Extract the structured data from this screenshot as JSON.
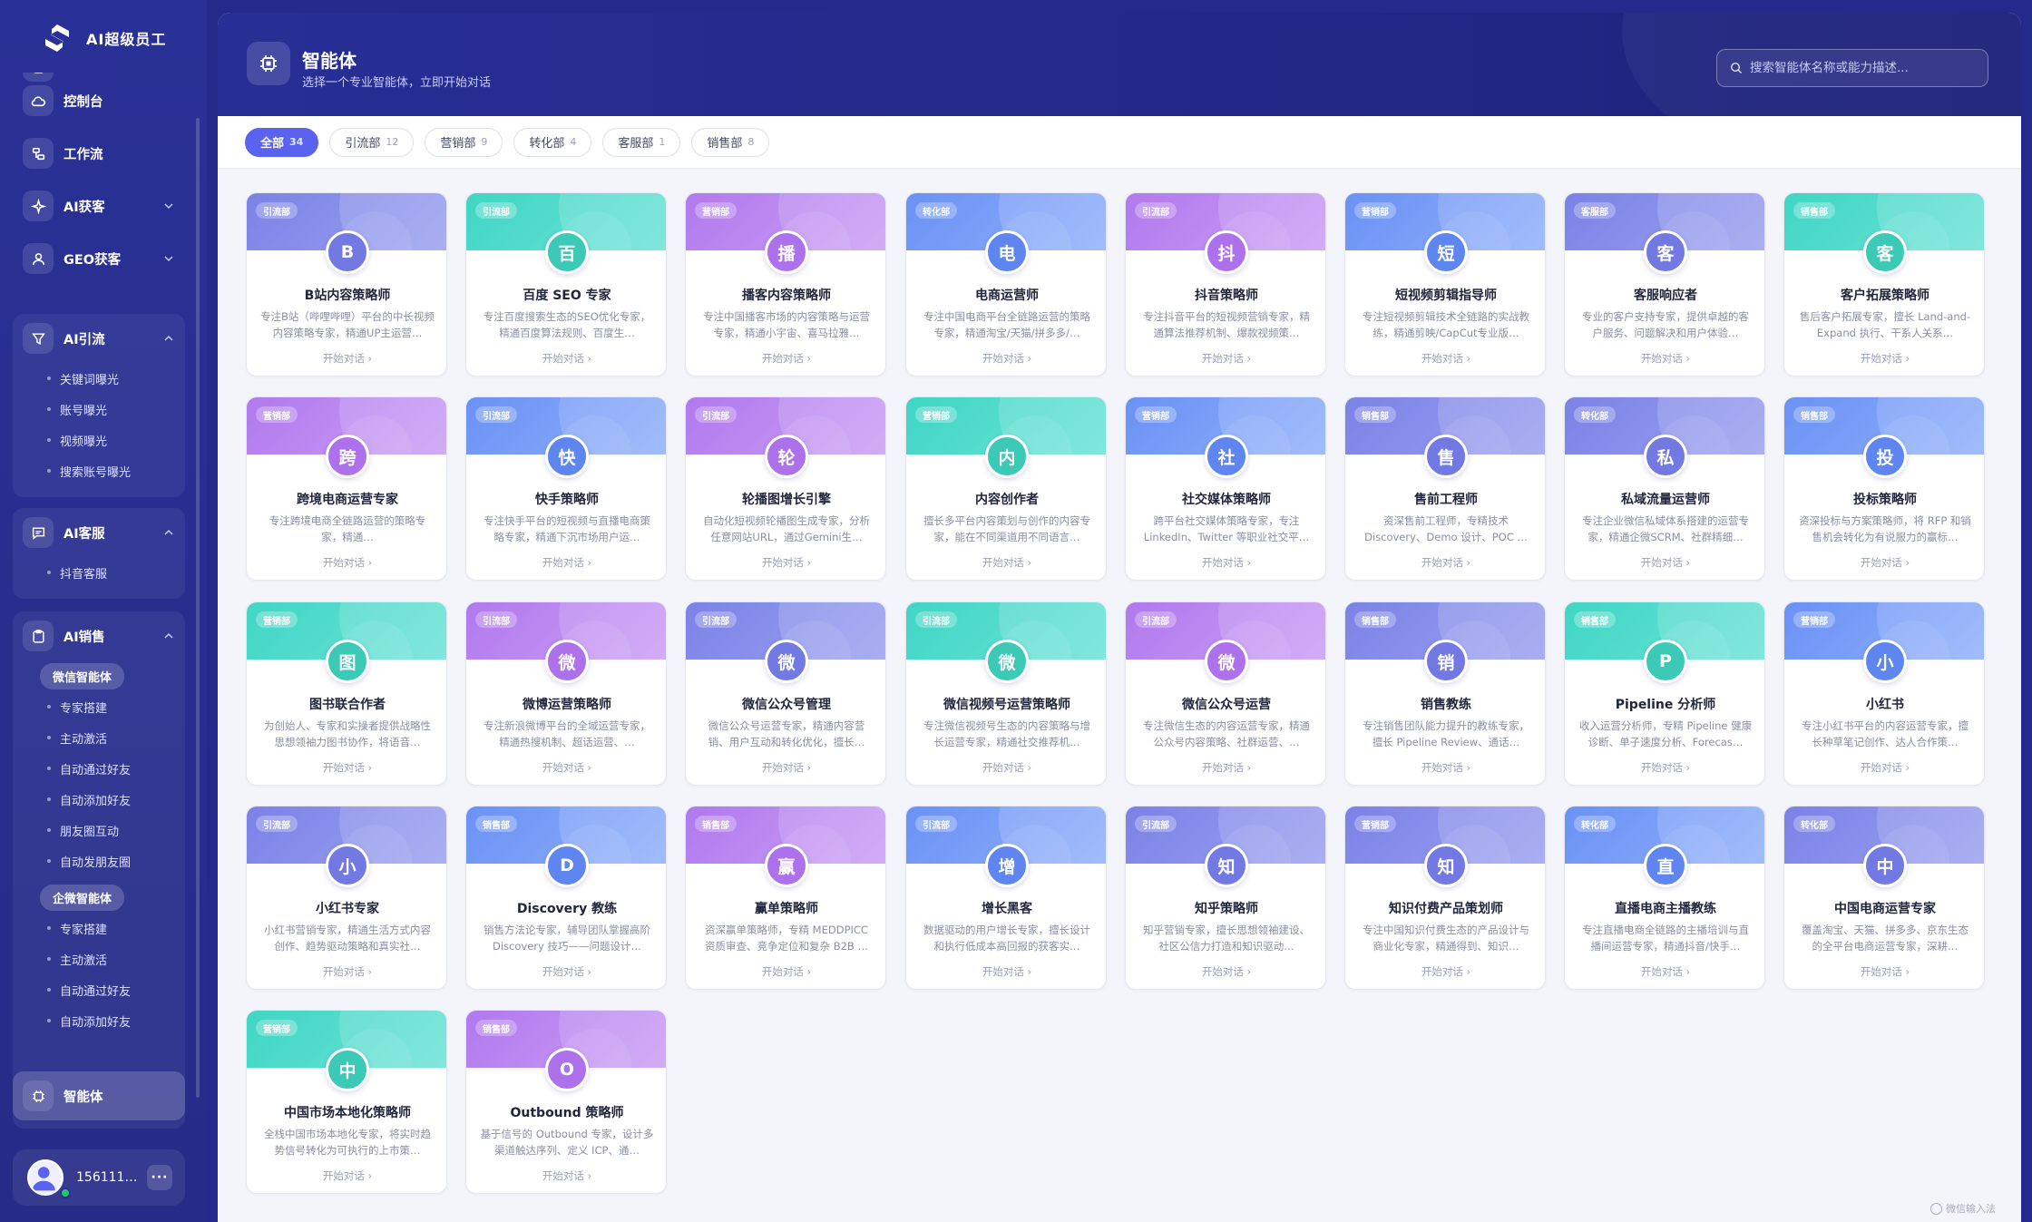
{
  "app": {
    "title": "AI超级员工"
  },
  "sidebar": {
    "nav": [
      {
        "label": "控制台",
        "icon": "cloud-icon"
      },
      {
        "label": "工作流",
        "icon": "workflow-icon"
      },
      {
        "label": "AI获客",
        "icon": "sparkle-icon"
      },
      {
        "label": "GEO获客",
        "icon": "user-search-icon"
      }
    ],
    "groups": {
      "traffic": {
        "label": "AI引流",
        "items": [
          "关键词曝光",
          "账号曝光",
          "视频曝光",
          "搜索账号曝光"
        ]
      },
      "service": {
        "label": "AI客服",
        "items": [
          "抖音客服"
        ]
      },
      "sales": {
        "label": "AI销售",
        "wechat_label": "微信智能体",
        "wechat_items": [
          "专家搭建",
          "主动激活",
          "自动通过好友",
          "自动添加好友",
          "朋友圈互动",
          "自动发朋友圈"
        ],
        "wecom_label": "企微智能体",
        "wecom_items": [
          "专家搭建",
          "主动激活",
          "自动通过好友",
          "自动添加好友"
        ]
      }
    },
    "active": {
      "label": "智能体"
    },
    "user": {
      "name": "1561112…",
      "more": "···"
    }
  },
  "header": {
    "title": "智能体",
    "subtitle": "选择一个专业智能体，立即开始对话",
    "search_placeholder": "搜索智能体名称或能力描述..."
  },
  "tabs": [
    {
      "label": "全部",
      "count": "34"
    },
    {
      "label": "引流部",
      "count": "12"
    },
    {
      "label": "营销部",
      "count": "9"
    },
    {
      "label": "转化部",
      "count": "4"
    },
    {
      "label": "客服部",
      "count": "1"
    },
    {
      "label": "销售部",
      "count": "8"
    }
  ],
  "cta_label": "开始对话 ›",
  "colors": {
    "accent": "#5a63f0",
    "sidebar": "#2a3196",
    "purple": "#7b82e6",
    "teal": "#40d6c4",
    "violet": "#b179ee",
    "blue": "#6a91f5"
  },
  "agents": [
    {
      "badge": "引流部",
      "avatar": "B",
      "color": "purple",
      "name": "B站内容策略师",
      "desc": "专注B站（哔哩哔哩）平台的中长视频内容策略专家，精通UP主运营…"
    },
    {
      "badge": "引流部",
      "avatar": "百",
      "color": "teal",
      "name": "百度 SEO 专家",
      "desc": "专注百度搜索生态的SEO优化专家，精通百度算法规则、百度生…"
    },
    {
      "badge": "营销部",
      "avatar": "播",
      "color": "violet",
      "name": "播客内容策略师",
      "desc": "专注中国播客市场的内容策略与运营专家，精通小宇宙、喜马拉雅…"
    },
    {
      "badge": "转化部",
      "avatar": "电",
      "color": "blue",
      "name": "电商运营师",
      "desc": "专注中国电商平台全链路运营的策略专家，精通淘宝/天猫/拼多多/…"
    },
    {
      "badge": "引流部",
      "avatar": "抖",
      "color": "violet",
      "name": "抖音策略师",
      "desc": "专注抖音平台的短视频营销专家，精通算法推荐机制、爆款视频策…"
    },
    {
      "badge": "营销部",
      "avatar": "短",
      "color": "blue",
      "name": "短视频剪辑指导师",
      "desc": "专注短视频剪辑技术全链路的实战教练，精通剪映/CapCut专业版…"
    },
    {
      "badge": "客服部",
      "avatar": "客",
      "color": "purple",
      "name": "客服响应者",
      "desc": "专业的客户支持专家，提供卓越的客户服务、问题解决和用户体验…"
    },
    {
      "badge": "销售部",
      "avatar": "客",
      "color": "teal",
      "name": "客户拓展策略师",
      "desc": "售后客户拓展专家，擅长 Land-and-Expand 执行、干系人关系…"
    },
    {
      "badge": "营销部",
      "avatar": "跨",
      "color": "violet",
      "name": "跨境电商运营专家",
      "desc": "专注跨境电商全链路运营的策略专家，精通…"
    },
    {
      "badge": "引流部",
      "avatar": "快",
      "color": "blue",
      "name": "快手策略师",
      "desc": "专注快手平台的短视频与直播电商策略专家，精通下沉市场用户运…"
    },
    {
      "badge": "引流部",
      "avatar": "轮",
      "color": "violet",
      "name": "轮播图增长引擎",
      "desc": "自动化短视频轮播图生成专家，分析任意网站URL，通过Gemini生…"
    },
    {
      "badge": "营销部",
      "avatar": "内",
      "color": "teal",
      "name": "内容创作者",
      "desc": "擅长多平台内容策划与创作的内容专家，能在不同渠道用不同语言…"
    },
    {
      "badge": "营销部",
      "avatar": "社",
      "color": "blue",
      "name": "社交媒体策略师",
      "desc": "跨平台社交媒体策略专家，专注 LinkedIn、Twitter 等职业社交平…"
    },
    {
      "badge": "销售部",
      "avatar": "售",
      "color": "purple",
      "name": "售前工程师",
      "desc": "资深售前工程师，专精技术 Discovery、Demo 设计、POC …"
    },
    {
      "badge": "转化部",
      "avatar": "私",
      "color": "purple",
      "name": "私域流量运营师",
      "desc": "专注企业微信私域体系搭建的运营专家，精通企微SCRM、社群精细…"
    },
    {
      "badge": "销售部",
      "avatar": "投",
      "color": "blue",
      "name": "投标策略师",
      "desc": "资深投标与方案策略师，将 RFP 和销售机会转化为有说服力的赢标…"
    },
    {
      "badge": "营销部",
      "avatar": "图",
      "color": "teal",
      "name": "图书联合作者",
      "desc": "为创始人、专家和实操者提供战略性思想领袖力图书协作，将语音…"
    },
    {
      "badge": "引流部",
      "avatar": "微",
      "color": "violet",
      "name": "微博运营策略师",
      "desc": "专注新浪微博平台的全域运营专家，精通热搜机制、超话运营、…"
    },
    {
      "badge": "引流部",
      "avatar": "微",
      "color": "purple",
      "name": "微信公众号管理",
      "desc": "微信公众号运营专家，精通内容营销、用户互动和转化优化，擅长…"
    },
    {
      "badge": "引流部",
      "avatar": "微",
      "color": "teal",
      "name": "微信视频号运营策略师",
      "desc": "专注微信视频号生态的内容策略与增长运营专家，精通社交推荐机…"
    },
    {
      "badge": "引流部",
      "avatar": "微",
      "color": "violet",
      "name": "微信公众号运营",
      "desc": "专注微信生态的内容运营专家，精通公众号内容策略、社群运营、…"
    },
    {
      "badge": "销售部",
      "avatar": "销",
      "color": "purple",
      "name": "销售教练",
      "desc": "专注销售团队能力提升的教练专家，擅长 Pipeline Review、通话…"
    },
    {
      "badge": "销售部",
      "avatar": "P",
      "color": "teal",
      "name": "Pipeline 分析师",
      "desc": "收入运营分析师，专精 Pipeline 健康诊断、单子速度分析、Forecas…"
    },
    {
      "badge": "营销部",
      "avatar": "小",
      "color": "blue",
      "name": "小红书",
      "desc": "专注小红书平台的内容运营专家，擅长种草笔记创作、达人合作策…"
    },
    {
      "badge": "引流部",
      "avatar": "小",
      "color": "purple",
      "name": "小红书专家",
      "desc": "小红书营销专家，精通生活方式内容创作、趋势驱动策略和真实社…"
    },
    {
      "badge": "销售部",
      "avatar": "D",
      "color": "blue",
      "name": "Discovery 教练",
      "desc": "销售方法论专家，辅导团队掌握高阶 Discovery 技巧——问题设计…"
    },
    {
      "badge": "销售部",
      "avatar": "赢",
      "color": "violet",
      "name": "赢单策略师",
      "desc": "资深赢单策略师，专精 MEDDPICC 资质审查、竞争定位和复杂 B2B …"
    },
    {
      "badge": "引流部",
      "avatar": "增",
      "color": "blue",
      "name": "增长黑客",
      "desc": "数据驱动的用户增长专家，擅长设计和执行低成本高回报的获客实…"
    },
    {
      "badge": "引流部",
      "avatar": "知",
      "color": "purple",
      "name": "知乎策略师",
      "desc": "知乎营销专家，擅长思想领袖建设、社区公信力打造和知识驱动…"
    },
    {
      "badge": "营销部",
      "avatar": "知",
      "color": "purple",
      "name": "知识付费产品策划师",
      "desc": "专注中国知识付费生态的产品设计与商业化专家，精通得到、知识…"
    },
    {
      "badge": "转化部",
      "avatar": "直",
      "color": "blue",
      "name": "直播电商主播教练",
      "desc": "专注直播电商全链路的主播培训与直播间运营专家，精通抖音/快手…"
    },
    {
      "badge": "转化部",
      "avatar": "中",
      "color": "purple",
      "name": "中国电商运营专家",
      "desc": "覆盖淘宝、天猫、拼多多、京东生态的全平台电商运营专家，深耕…"
    },
    {
      "badge": "营销部",
      "avatar": "中",
      "color": "teal",
      "name": "中国市场本地化策略师",
      "desc": "全栈中国市场本地化专家，将实时趋势信号转化为可执行的上市策…"
    },
    {
      "badge": "销售部",
      "avatar": "O",
      "color": "violet",
      "name": "Outbound 策略师",
      "desc": "基于信号的 Outbound 专家，设计多渠道触达序列、定义 ICP、通…"
    }
  ],
  "ime_label": "微信输入法"
}
